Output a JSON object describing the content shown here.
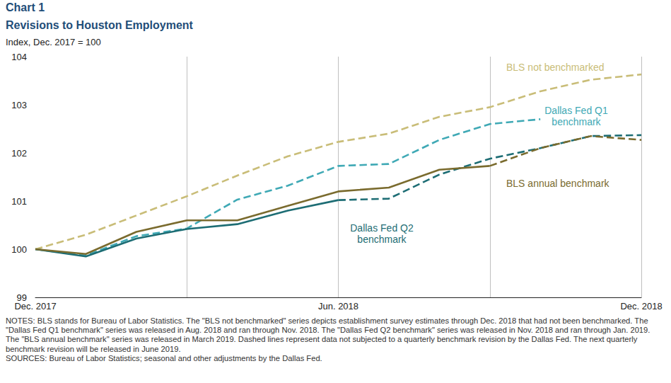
{
  "chart_data": {
    "type": "line",
    "title": "Chart 1",
    "subtitle": "Revisions to Houston Employment",
    "y_label": "Index, Dec. 2017 = 100",
    "categories": [
      "Dec. 2017",
      null,
      null,
      null,
      null,
      null,
      "Jun. 2018",
      null,
      null,
      null,
      null,
      null,
      "Dec. 2018"
    ],
    "series": [
      {
        "name": "BLS not benchmarked",
        "color": "#c9bd78",
        "line_style": "dashed",
        "values": [
          100,
          100.3,
          100.7,
          101.1,
          101.53,
          101.93,
          102.23,
          102.4,
          102.75,
          102.95,
          103.28,
          103.52,
          103.63
        ]
      },
      {
        "name": "Dallas Fed Q1 benchmark",
        "color": "#3fa9b5",
        "line_style": "dashed",
        "values": [
          100,
          99.87,
          100.27,
          100.43,
          101.03,
          101.32,
          101.73,
          101.77,
          102.27,
          102.6,
          102.7,
          null,
          null
        ]
      },
      {
        "name": "Dallas Fed Q2 benchmark",
        "color": "#1d6d74",
        "line_style": "solid",
        "values": [
          100,
          99.85,
          100.22,
          100.42,
          100.52,
          100.8,
          101.02,
          null,
          null,
          null,
          null,
          null,
          null
        ]
      },
      {
        "name": "Dallas Fed Q2 benchmark",
        "color": "#1d6d74",
        "line_style": "dashed",
        "values": [
          null,
          null,
          null,
          null,
          null,
          null,
          101.02,
          101.05,
          101.55,
          101.88,
          102.1,
          102.35,
          102.37
        ]
      },
      {
        "name": "BLS annual benchmark",
        "color": "#7a6b2e",
        "line_style": "solid",
        "values": [
          100,
          99.9,
          100.36,
          100.6,
          100.6,
          100.9,
          101.2,
          101.28,
          101.65,
          101.73,
          null,
          null,
          null
        ]
      },
      {
        "name": "BLS annual benchmark",
        "color": "#7a6b2e",
        "line_style": "dashed",
        "values": [
          null,
          null,
          null,
          null,
          null,
          null,
          null,
          null,
          null,
          101.73,
          102.1,
          102.35,
          102.27
        ]
      }
    ],
    "ylim": [
      99,
      104
    ],
    "yticks": [
      99,
      100,
      101,
      102,
      103,
      104
    ],
    "grid": true,
    "notes": "NOTES: BLS stands for Bureau of Labor Statistics. The \"BLS not benchmarked\" series depicts establishment survey estimates through Dec. 2018 that had not been benchmarked. The \"Dallas Fed Q1 benchmark\" series was released in Aug. 2018 and ran through Nov. 2018. The \"Dallas Fed Q2 benchmark\" series was released in Nov. 2018 and ran through Jan. 2019. The \"BLS annual benchmark\" series was released in March 2019. Dashed lines represent data not subjected to a quarterly benchmark revision by the Dallas Fed. The next quarterly benchmark revision will be released in June 2019.",
    "source": "SOURCES: Bureau of Labor Statistics; seasonal and other adjustments by the Dallas Fed."
  }
}
